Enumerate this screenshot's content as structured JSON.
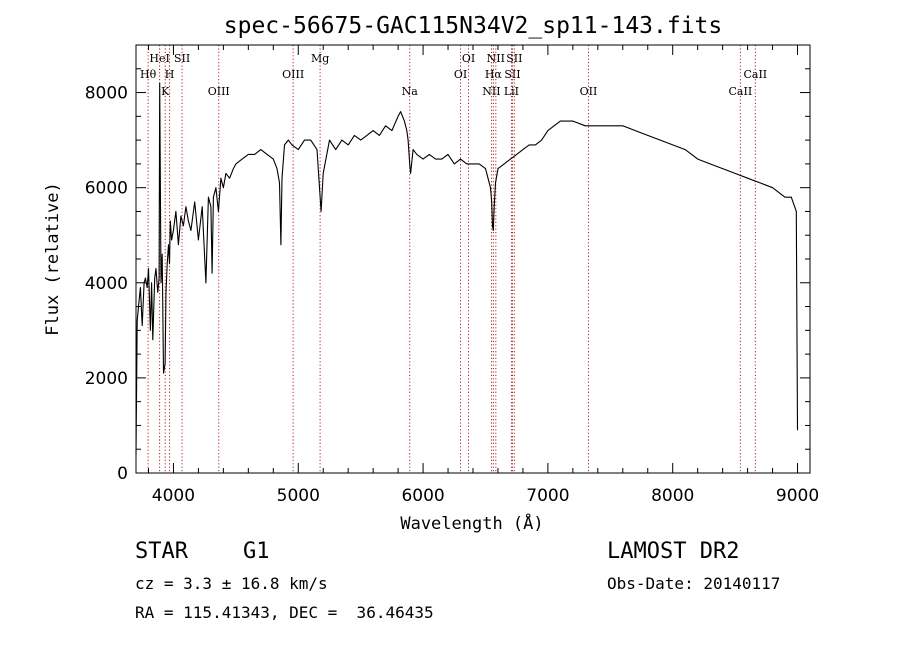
{
  "chart_data": {
    "type": "line",
    "title": "spec-56675-GAC115N34V2_sp11-143.fits",
    "xlabel": "Wavelength (Å)",
    "ylabel": "Flux (relative)",
    "xlim": [
      3700,
      9100
    ],
    "ylim": [
      0,
      9000
    ],
    "xticks": [
      4000,
      5000,
      6000,
      7000,
      8000,
      9000
    ],
    "yticks": [
      0,
      2000,
      4000,
      6000,
      8000
    ],
    "grid": false,
    "line_color": "#000000",
    "marker_color": "#b22222",
    "spectrum": {
      "x": [
        3700,
        3710,
        3720,
        3735,
        3750,
        3765,
        3775,
        3790,
        3800,
        3815,
        3825,
        3835,
        3850,
        3860,
        3868,
        3875,
        3885,
        3890,
        3900,
        3910,
        3920,
        3933,
        3940,
        3950,
        3960,
        3968,
        3975,
        3985,
        4000,
        4020,
        4040,
        4060,
        4080,
        4100,
        4120,
        4140,
        4170,
        4200,
        4230,
        4260,
        4280,
        4300,
        4310,
        4320,
        4340,
        4360,
        4380,
        4400,
        4420,
        4450,
        4480,
        4500,
        4550,
        4600,
        4650,
        4700,
        4750,
        4800,
        4830,
        4850,
        4861,
        4870,
        4890,
        4920,
        4950,
        5000,
        5050,
        5100,
        5150,
        5170,
        5183,
        5200,
        5250,
        5300,
        5350,
        5400,
        5450,
        5500,
        5550,
        5600,
        5650,
        5700,
        5750,
        5800,
        5820,
        5850,
        5870,
        5880,
        5893,
        5900,
        5920,
        5950,
        6000,
        6050,
        6100,
        6150,
        6200,
        6250,
        6300,
        6350,
        6400,
        6450,
        6500,
        6520,
        6540,
        6550,
        6556,
        6563,
        6570,
        6580,
        6600,
        6650,
        6700,
        6750,
        6800,
        6850,
        6900,
        6950,
        7000,
        7050,
        7100,
        7200,
        7300,
        7400,
        7500,
        7600,
        7700,
        7800,
        7900,
        8000,
        8100,
        8200,
        8300,
        8400,
        8500,
        8600,
        8700,
        8800,
        8850,
        8900,
        8950,
        8990,
        9000
      ],
      "y": [
        400,
        3200,
        3500,
        3900,
        3100,
        4000,
        4100,
        3900,
        4300,
        3000,
        4000,
        2800,
        4100,
        4300,
        4000,
        3800,
        4100,
        8200,
        4000,
        4600,
        2100,
        2300,
        3800,
        4400,
        4800,
        4400,
        5300,
        4900,
        5100,
        5500,
        4800,
        5400,
        5200,
        5600,
        5300,
        5100,
        5700,
        4900,
        5600,
        4000,
        5800,
        5600,
        4200,
        5800,
        6000,
        5500,
        6200,
        6000,
        6300,
        6200,
        6400,
        6500,
        6600,
        6700,
        6700,
        6800,
        6700,
        6600,
        6400,
        6100,
        4800,
        6200,
        6900,
        7000,
        6900,
        6800,
        7000,
        7000,
        6800,
        6000,
        5500,
        6300,
        7000,
        6800,
        7000,
        6900,
        7100,
        7000,
        7100,
        7200,
        7100,
        7300,
        7200,
        7500,
        7600,
        7400,
        7200,
        7000,
        6500,
        6300,
        6800,
        6700,
        6600,
        6700,
        6600,
        6600,
        6700,
        6500,
        6600,
        6500,
        6500,
        6500,
        6400,
        6200,
        6000,
        5700,
        5200,
        5100,
        5600,
        6100,
        6400,
        6500,
        6600,
        6700,
        6800,
        6900,
        6900,
        7000,
        7200,
        7300,
        7400,
        7400,
        7300,
        7300,
        7300,
        7300,
        7200,
        7100,
        7000,
        6900,
        6800,
        6600,
        6500,
        6400,
        6300,
        6200,
        6100,
        6000,
        5900,
        5800,
        5800,
        5500,
        900
      ]
    },
    "lines": [
      {
        "label": "Hθ",
        "x": 3797,
        "row": 2
      },
      {
        "label": "HeI",
        "x": 3889,
        "row": 1
      },
      {
        "label": "K",
        "x": 3934,
        "row": 3
      },
      {
        "label": "H",
        "x": 3969,
        "row": 2
      },
      {
        "label": "SII",
        "x": 4069,
        "row": 1
      },
      {
        "label": "OIII",
        "x": 4363,
        "row": 3
      },
      {
        "label": "OIII",
        "x": 4959,
        "row": 2
      },
      {
        "label": "Mg",
        "x": 5175,
        "row": 1
      },
      {
        "label": "Na",
        "x": 5893,
        "row": 3
      },
      {
        "label": "OI",
        "x": 6300,
        "row": 2
      },
      {
        "label": "OI",
        "x": 6364,
        "row": 1
      },
      {
        "label": "NII",
        "x": 6548,
        "row": 3
      },
      {
        "label": "NII",
        "x": 6583,
        "row": 1
      },
      {
        "label": "Hα",
        "x": 6563,
        "row": 2
      },
      {
        "label": "SII",
        "x": 6716,
        "row": 2
      },
      {
        "label": "LiI",
        "x": 6708,
        "row": 3
      },
      {
        "label": "SII",
        "x": 6731,
        "row": 1
      },
      {
        "label": "OII",
        "x": 7325,
        "row": 3
      },
      {
        "label": "CaII",
        "x": 8542,
        "row": 3
      },
      {
        "label": "CaII",
        "x": 8662,
        "row": 2
      }
    ]
  },
  "info": {
    "class": "STAR",
    "subclass": "G1",
    "cz": "cz = 3.3 ± 16.8 km/s",
    "coords": "RA = 115.41343, DEC =  36.46435",
    "survey": "LAMOST DR2",
    "obs_date": "Obs-Date: 20140117"
  }
}
